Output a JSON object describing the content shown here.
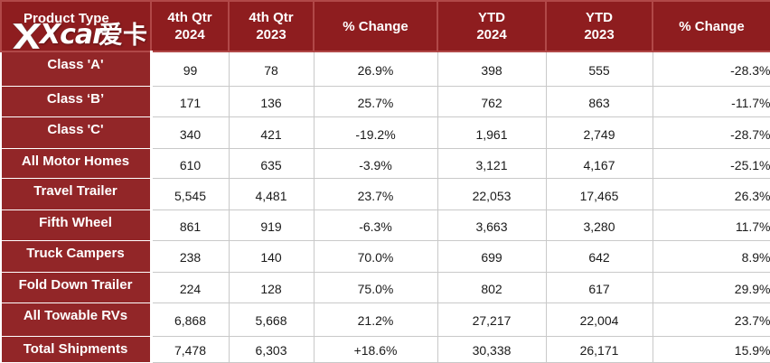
{
  "header": {
    "product_type": "Product Type",
    "q4_2024_line1": "4th Qtr",
    "q4_2024_line2": "2024",
    "q4_2023_line1": "4th Qtr",
    "q4_2023_line2": "2023",
    "pct_change_q": "% Change",
    "ytd_2024_line1": "YTD",
    "ytd_2024_line2": "2024",
    "ytd_2023_line1": "YTD",
    "ytd_2023_line2": "2023",
    "pct_change_ytd": "% Change"
  },
  "rows": [
    {
      "label": "Class 'A'",
      "q2024": "99",
      "q2023": "78",
      "qchg": "26.9%",
      "y2024": "398",
      "y2023": "555",
      "ychg": "-28.3%"
    },
    {
      "label": "Class ‘B’",
      "q2024": "171",
      "q2023": "136",
      "qchg": "25.7%",
      "y2024": "762",
      "y2023": "863",
      "ychg": "-11.7%"
    },
    {
      "label": "Class 'C'",
      "q2024": "340",
      "q2023": "421",
      "qchg": "-19.2%",
      "y2024": "1,961",
      "y2023": "2,749",
      "ychg": "-28.7%"
    },
    {
      "label": "All Motor Homes",
      "q2024": "610",
      "q2023": "635",
      "qchg": "-3.9%",
      "y2024": "3,121",
      "y2023": "4,167",
      "ychg": "-25.1%"
    },
    {
      "label": "Travel Trailer",
      "q2024": "5,545",
      "q2023": "4,481",
      "qchg": "23.7%",
      "y2024": "22,053",
      "y2023": "17,465",
      "ychg": "26.3%"
    },
    {
      "label": "Fifth Wheel",
      "q2024": "861",
      "q2023": "919",
      "qchg": "-6.3%",
      "y2024": "3,663",
      "y2023": "3,280",
      "ychg": "11.7%"
    },
    {
      "label": "Truck Campers",
      "q2024": "238",
      "q2023": "140",
      "qchg": "70.0%",
      "y2024": "699",
      "y2023": "642",
      "ychg": "8.9%"
    },
    {
      "label": "Fold Down Trailer",
      "q2024": "224",
      "q2023": "128",
      "qchg": "75.0%",
      "y2024": "802",
      "y2023": "617",
      "ychg": "29.9%"
    },
    {
      "label": "All Towable RVs",
      "q2024": "6,868",
      "q2023": "5,668",
      "qchg": "21.2%",
      "y2024": "27,217",
      "y2023": "22,004",
      "ychg": "23.7%"
    },
    {
      "label": "Total Shipments",
      "q2024": "7,478",
      "q2023": "6,303",
      "qchg": "+18.6%",
      "y2024": "30,338",
      "y2023": "26,171",
      "ychg": "15.9%"
    }
  ],
  "watermark": {
    "latin": "Xcar",
    "chinese": "爱卡"
  },
  "colors": {
    "header_bg": "#8e1d1f",
    "label_bg": "#922628",
    "subtotal_row_bg": "#ecc9c9",
    "total_row_bg": "#f2d5d5"
  }
}
